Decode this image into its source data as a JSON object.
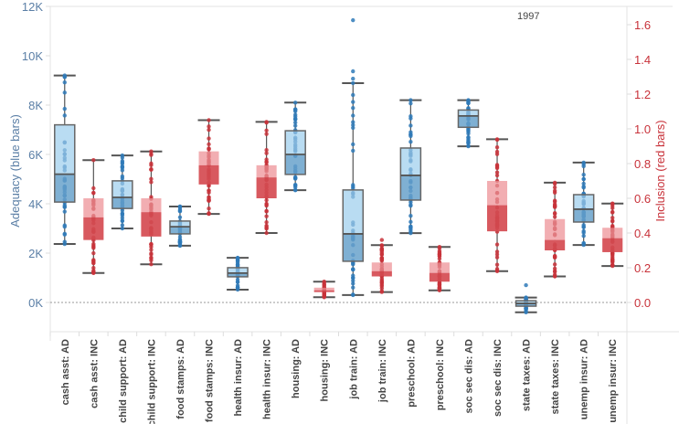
{
  "chart_data": {
    "type": "box",
    "annotation": "1997",
    "left_axis": {
      "label": "Adequacy (blue bars)",
      "range": [
        -1.2,
        12.3
      ],
      "unit": "K",
      "ticks": [
        0,
        2,
        4,
        6,
        8,
        10,
        12
      ],
      "tick_labels": [
        "0K",
        "2K",
        "4K",
        "6K",
        "8K",
        "10K",
        "12K"
      ],
      "color": "#5b7fa6"
    },
    "right_axis": {
      "label": "Inclusion (red bars)",
      "range": [
        -0.17,
        1.72
      ],
      "ticks": [
        0.0,
        0.2,
        0.4,
        0.6,
        0.8,
        1.0,
        1.2,
        1.4,
        1.6
      ],
      "tick_labels": [
        "0.0",
        "0.2",
        "0.4",
        "0.6",
        "0.8",
        "1.0",
        "1.2",
        "1.4",
        "1.6"
      ],
      "color": "#c8323a"
    },
    "zero_line": true,
    "colors": {
      "ad_upper": "#b9dcf2",
      "ad_lower": "#7fb0d3",
      "ad_points": "#2f7ab8",
      "inc_upper": "#f2aeb2",
      "inc_lower": "#d8595f",
      "inc_points": "#c8323a",
      "whisker": "#555555"
    },
    "categories": [
      "cash asst: AD",
      "cash asst: INC",
      "child support: AD",
      "child support: INC",
      "food stamps: AD",
      "food stamps: INC",
      "health insur: AD",
      "health insur: INC",
      "housing: AD",
      "housing: INC",
      "job train: AD",
      "job train: INC",
      "preschool: AD",
      "preschool: INC",
      "soc sec dis: AD",
      "soc sec dis: INC",
      "state taxes: AD",
      "state taxes: INC",
      "unemp insur: AD",
      "unemp insur: INC"
    ],
    "series": [
      {
        "name": "cash asst: AD",
        "axis": "left",
        "min": 2.37,
        "q1": 4.07,
        "median": 5.2,
        "q3": 7.2,
        "max": 9.2,
        "outliers": []
      },
      {
        "name": "cash asst: INC",
        "axis": "right",
        "min": 0.17,
        "q1": 0.36,
        "median": 0.49,
        "q3": 0.6,
        "max": 0.82,
        "outliers": []
      },
      {
        "name": "child support: AD",
        "axis": "left",
        "min": 3.0,
        "q1": 3.81,
        "median": 4.26,
        "q3": 4.93,
        "max": 5.96,
        "outliers": []
      },
      {
        "name": "child support: INC",
        "axis": "right",
        "min": 0.22,
        "q1": 0.38,
        "median": 0.52,
        "q3": 0.6,
        "max": 0.87,
        "outliers": []
      },
      {
        "name": "food stamps: AD",
        "axis": "left",
        "min": 2.3,
        "q1": 2.78,
        "median": 3.07,
        "q3": 3.3,
        "max": 3.89,
        "outliers": []
      },
      {
        "name": "food stamps: INC",
        "axis": "right",
        "min": 0.51,
        "q1": 0.68,
        "median": 0.79,
        "q3": 0.87,
        "max": 1.05,
        "outliers": []
      },
      {
        "name": "health insur: AD",
        "axis": "left",
        "min": 0.52,
        "q1": 1.04,
        "median": 1.19,
        "q3": 1.41,
        "max": 1.81,
        "outliers": []
      },
      {
        "name": "health insur: INC",
        "axis": "right",
        "min": 0.4,
        "q1": 0.6,
        "median": 0.72,
        "q3": 0.79,
        "max": 1.04,
        "outliers": []
      },
      {
        "name": "housing: AD",
        "axis": "left",
        "min": 4.55,
        "q1": 5.19,
        "median": 6.0,
        "q3": 6.96,
        "max": 8.1,
        "outliers": []
      },
      {
        "name": "housing: INC",
        "axis": "right",
        "min": 0.03,
        "q1": 0.06,
        "median": 0.07,
        "q3": 0.085,
        "max": 0.12,
        "outliers": []
      },
      {
        "name": "job train: AD",
        "axis": "left",
        "min": 0.3,
        "q1": 1.67,
        "median": 2.78,
        "q3": 4.56,
        "max": 8.89,
        "outliers": [
          9.07,
          9.37,
          11.44
        ]
      },
      {
        "name": "job train: INC",
        "axis": "right",
        "min": 0.06,
        "q1": 0.15,
        "median": 0.18,
        "q3": 0.23,
        "max": 0.33,
        "outliers": [
          0.36
        ]
      },
      {
        "name": "preschool: AD",
        "axis": "left",
        "min": 2.81,
        "q1": 4.15,
        "median": 5.15,
        "q3": 6.26,
        "max": 8.2,
        "outliers": []
      },
      {
        "name": "preschool: INC",
        "axis": "right",
        "min": 0.07,
        "q1": 0.12,
        "median": 0.17,
        "q3": 0.23,
        "max": 0.32,
        "outliers": []
      },
      {
        "name": "soc sec dis: AD",
        "axis": "left",
        "min": 6.33,
        "q1": 7.1,
        "median": 7.56,
        "q3": 7.8,
        "max": 8.2,
        "outliers": []
      },
      {
        "name": "soc sec dis: INC",
        "axis": "right",
        "min": 0.18,
        "q1": 0.41,
        "median": 0.56,
        "q3": 0.7,
        "max": 0.94,
        "outliers": []
      },
      {
        "name": "state taxes: AD",
        "axis": "left",
        "min": -0.4,
        "q1": -0.15,
        "median": -0.04,
        "q3": 0.07,
        "max": 0.2,
        "outliers": [
          0.7
        ]
      },
      {
        "name": "state taxes: INC",
        "axis": "right",
        "min": 0.15,
        "q1": 0.3,
        "median": 0.36,
        "q3": 0.48,
        "max": 0.69,
        "outliers": []
      },
      {
        "name": "unemp insur: AD",
        "axis": "left",
        "min": 2.33,
        "q1": 3.26,
        "median": 3.78,
        "q3": 4.37,
        "max": 5.67,
        "outliers": []
      },
      {
        "name": "unemp insur: INC",
        "axis": "right",
        "min": 0.21,
        "q1": 0.29,
        "median": 0.37,
        "q3": 0.43,
        "max": 0.57,
        "outliers": []
      }
    ]
  }
}
